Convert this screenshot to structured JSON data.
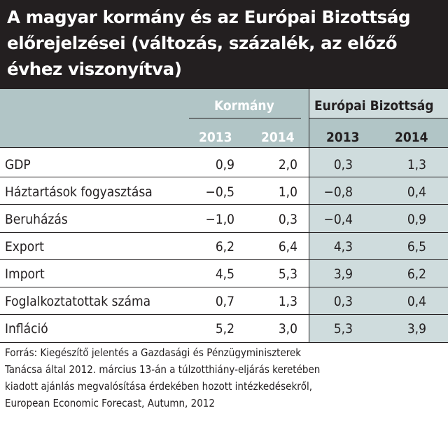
{
  "title_lines": [
    "A magyar kormány és az Európai Bizottság",
    "előrejelzései (változás, százalék, az előző",
    "évhez viszonyítva)"
  ],
  "colors": {
    "title_bg": "#231f20",
    "header_gray": "#b1c5c6",
    "ec_column_bg": "#cfdcdd",
    "text": "#231f20"
  },
  "chart_data": {
    "type": "table",
    "title": "A magyar kormány és az Európai Bizottság előrejelzései (változás, százalék, az előző évhez viszonyítva)",
    "groups": [
      {
        "name": "Kormány",
        "years": [
          "2013",
          "2014"
        ]
      },
      {
        "name": "Európai Bizottság",
        "years": [
          "2013",
          "2014"
        ]
      }
    ],
    "rows": [
      {
        "label": "GDP",
        "values": [
          "0,9",
          "2,0",
          "0,3",
          "1,3"
        ]
      },
      {
        "label": "Háztartások fogyasztása",
        "values": [
          "−0,5",
          "1,0",
          "−0,8",
          "0,4"
        ]
      },
      {
        "label": "Beruházás",
        "values": [
          "−1,0",
          "0,3",
          "−0,4",
          "0,9"
        ]
      },
      {
        "label": "Export",
        "values": [
          "6,2",
          "6,4",
          "4,3",
          "6,5"
        ]
      },
      {
        "label": "Import",
        "values": [
          "4,5",
          "5,3",
          "3,9",
          "6,2"
        ]
      },
      {
        "label": "Foglalkoztatottak száma",
        "values": [
          "0,7",
          "1,3",
          "0,3",
          "0,4"
        ]
      },
      {
        "label": "Infláció",
        "values": [
          "5,2",
          "3,0",
          "5,3",
          "3,9"
        ]
      }
    ]
  },
  "source_lines": [
    "Forrás: Kiegészítő jelentés a Gazdasági és Pénzügyminiszterek",
    "Tanácsa által 2012. március 13-án a túlzotthiány-eljárás keretében",
    "kiadott ajánlás megvalósítása érdekében hozott intézkedésekről,",
    "European Economic Forecast, Autumn, 2012"
  ]
}
